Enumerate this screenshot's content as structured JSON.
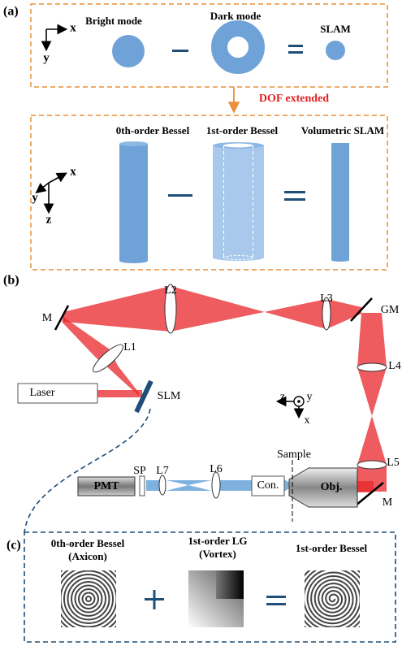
{
  "panel_a": {
    "label": "(a)",
    "axes_2d": {
      "x": "x",
      "y": "y"
    },
    "top": {
      "bright": "Bright mode",
      "dark": "Dark mode",
      "slam": "SLAM"
    },
    "arrow_label": "DOF extended",
    "bottom": {
      "bessel0": "0th-order Bessel",
      "bessel1": "1st-order Bessel",
      "vslam": "Volumetric SLAM"
    },
    "axes_3d": {
      "x": "x",
      "y": "y",
      "z": "z"
    }
  },
  "panel_b": {
    "label": "(b)",
    "m1": "M",
    "l2": "L2",
    "l3": "L3",
    "gm": "GM",
    "l1": "L1",
    "l4": "L4",
    "laser": "Laser",
    "slm": "SLM",
    "axes": {
      "z": "z",
      "y": "y",
      "x": "x"
    },
    "sample": "Sample",
    "l5": "L5",
    "pmt": "PMT",
    "sp": "SP",
    "l7": "L7",
    "l6": "L6",
    "con": "Con.",
    "obj": "Obj.",
    "m2": "M"
  },
  "panel_c": {
    "label": "(c)",
    "axicon": [
      "0th-order Bessel",
      "(Axicon)"
    ],
    "vortex": [
      "1st-order LG",
      "(Vortex)"
    ],
    "bessel1": "1st-order Bessel"
  }
}
